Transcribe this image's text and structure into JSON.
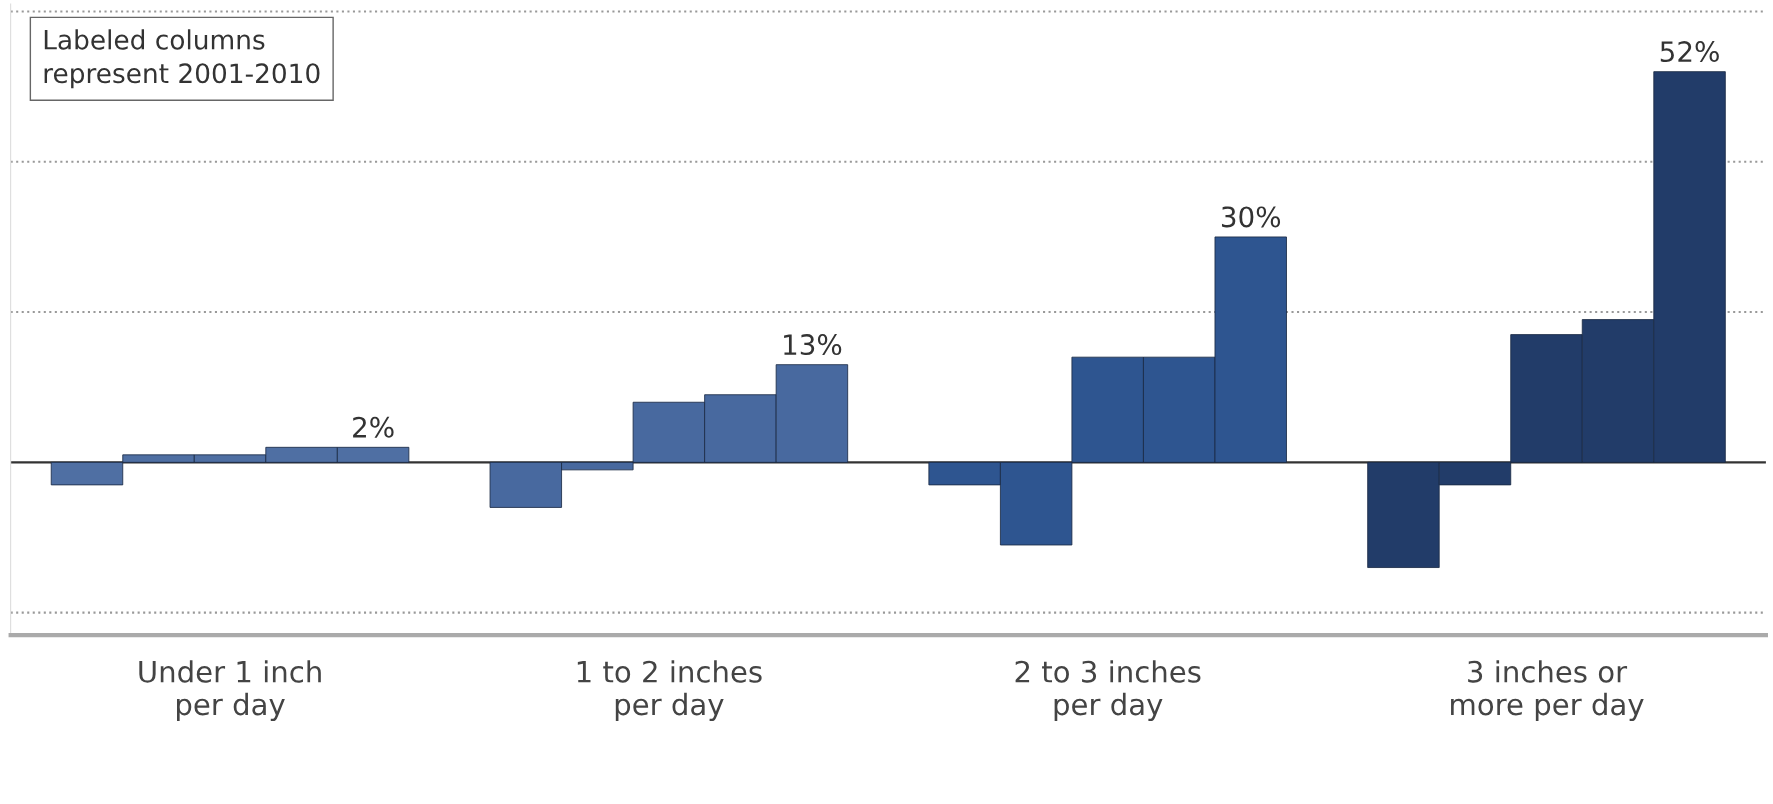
{
  "chart_data": {
    "type": "bar",
    "categories": [
      "Under 1 inch\nper day",
      "1 to 2 inches\nper day",
      "2 to 3 inches\nper day",
      "3 inches or\nmore per day"
    ],
    "series": [
      {
        "colors": [
          "#4f6fa3",
          "#48699f",
          "#2e5590",
          "#223c69"
        ],
        "values": [
          -3,
          -6,
          -3,
          -14
        ]
      },
      {
        "colors": [
          "#4f6fa3",
          "#48699f",
          "#2e5590",
          "#223c69"
        ],
        "values": [
          1,
          -1,
          -11,
          -3
        ]
      },
      {
        "colors": [
          "#4f6fa3",
          "#48699f",
          "#2e5590",
          "#223c69"
        ],
        "values": [
          1,
          8,
          14,
          17
        ]
      },
      {
        "colors": [
          "#4f6fa3",
          "#48699f",
          "#2e5590",
          "#223c69"
        ],
        "values": [
          2,
          9,
          14,
          19
        ]
      },
      {
        "colors": [
          "#4f6fa3",
          "#48699f",
          "#2e5590",
          "#223c69"
        ],
        "values": [
          2,
          13,
          30,
          52
        ],
        "value_labels": [
          "2%",
          "13%",
          "30%",
          "52%"
        ]
      }
    ],
    "ylim": [
      -23,
      61
    ],
    "ref_lines": [
      {
        "axis": "y",
        "value": -20,
        "color": "#999999",
        "line_style": "dotted"
      },
      {
        "axis": "y",
        "value": 0,
        "color": "#333333",
        "line_style": "solid"
      },
      {
        "axis": "y",
        "value": 20,
        "color": "#999999",
        "line_style": "dotted"
      },
      {
        "axis": "y",
        "value": 40,
        "color": "#999999",
        "line_style": "dotted"
      },
      {
        "axis": "y",
        "value": 60,
        "color": "#999999",
        "line_style": "dotted"
      }
    ],
    "annotations": [
      "Labeled columns\nrepresent 2001-2010"
    ]
  }
}
